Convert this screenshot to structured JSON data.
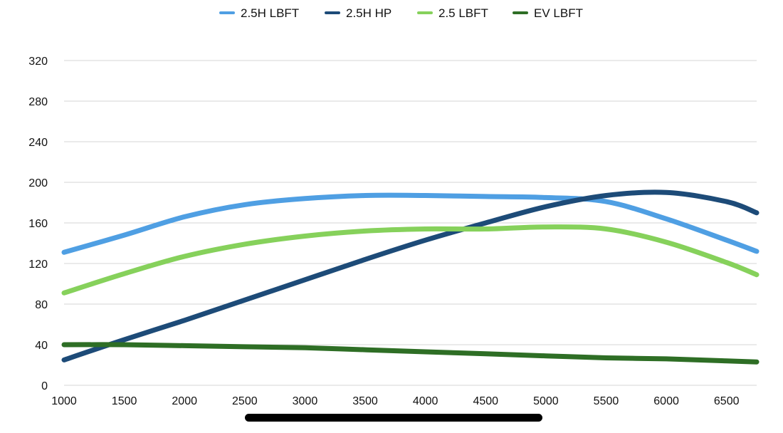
{
  "chart_data": {
    "type": "line",
    "title": "",
    "xlabel": "",
    "ylabel": "",
    "legend_position": "top",
    "grid": true,
    "xlim": [
      1000,
      6750
    ],
    "ylim": [
      0,
      320
    ],
    "x_ticks": [
      1000,
      1500,
      2000,
      2500,
      3000,
      3500,
      4000,
      4500,
      5000,
      5500,
      6000,
      6500
    ],
    "y_ticks": [
      0,
      40,
      80,
      120,
      160,
      200,
      240,
      280,
      320
    ],
    "series": [
      {
        "name": "2.5H LBFT",
        "color": "#4f9fe3",
        "x": [
          1000,
          1500,
          2000,
          2500,
          3000,
          3500,
          4000,
          4500,
          5000,
          5500,
          6000,
          6500,
          6750
        ],
        "values": [
          131,
          148,
          166,
          178,
          184,
          187,
          187,
          186,
          185,
          181,
          164,
          143,
          132
        ]
      },
      {
        "name": "2.5H HP",
        "color": "#1d4b78",
        "x": [
          1000,
          1500,
          2000,
          2500,
          3000,
          3500,
          4000,
          4500,
          5000,
          5500,
          6000,
          6500,
          6750
        ],
        "values": [
          25,
          45,
          64,
          84,
          104,
          124,
          143,
          160,
          176,
          187,
          190,
          181,
          170
        ]
      },
      {
        "name": "2.5 LBFT",
        "color": "#86d15b",
        "x": [
          1000,
          1500,
          2000,
          2500,
          3000,
          3500,
          4000,
          4500,
          5000,
          5500,
          6000,
          6500,
          6750
        ],
        "values": [
          91,
          110,
          127,
          139,
          147,
          152,
          154,
          154,
          156,
          154,
          141,
          121,
          109
        ]
      },
      {
        "name": "EV LBFT",
        "color": "#2e6e25",
        "x": [
          1000,
          1500,
          2000,
          2500,
          3000,
          3500,
          4000,
          4500,
          5000,
          5500,
          6000,
          6500,
          6750
        ],
        "values": [
          40,
          40,
          39,
          38,
          37,
          35,
          33,
          31,
          29,
          27,
          26,
          24,
          23
        ]
      }
    ]
  }
}
